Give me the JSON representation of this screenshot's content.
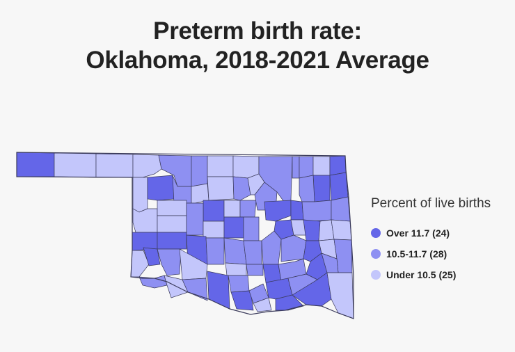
{
  "title_line1": "Preterm birth rate:",
  "title_line2": "Oklahoma, 2018-2021 Average",
  "legend": {
    "title": "Percent of live births",
    "items": [
      {
        "label": "Over 11.7 (24)",
        "color": "#6466e8"
      },
      {
        "label": "10.5-11.7 (28)",
        "color": "#8e90f2"
      },
      {
        "label": "Under 10.5 (25)",
        "color": "#c3c6fb"
      }
    ]
  },
  "border_color": "#3a3a5a"
}
